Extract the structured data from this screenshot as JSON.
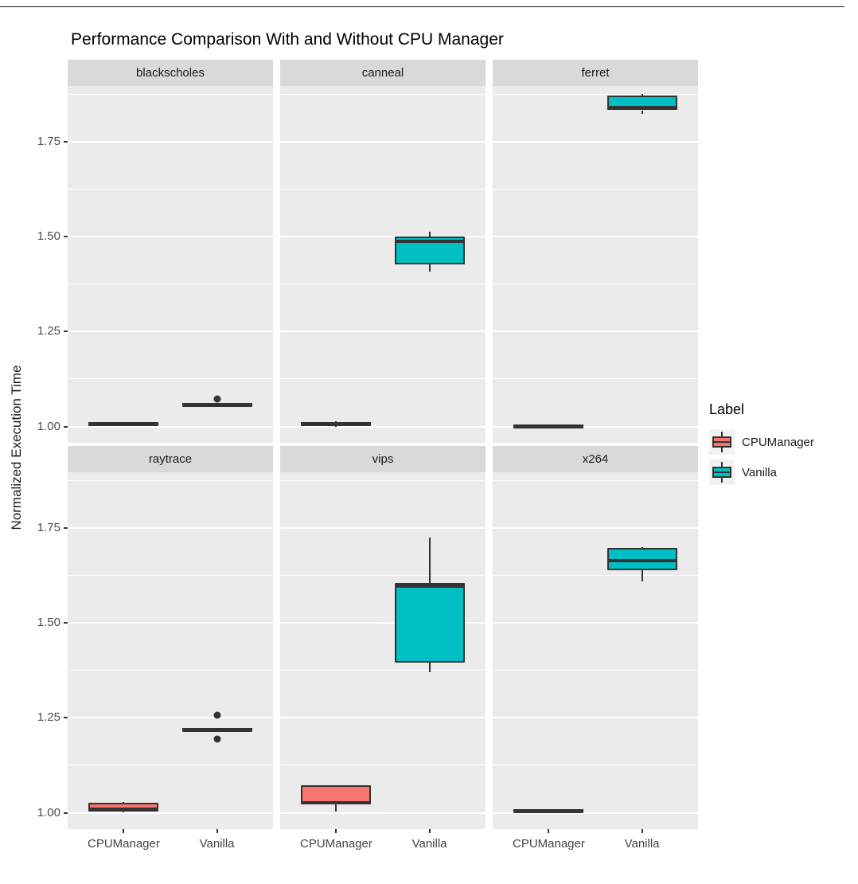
{
  "figure": {
    "title": "Performance Comparison With and Without CPU Manager",
    "ylabel": "Normalized Execution Time"
  },
  "legend": {
    "title": "Label",
    "entries": [
      {
        "label": "CPUManager",
        "color": "#F8766D"
      },
      {
        "label": "Vanilla",
        "color": "#00BFC4"
      }
    ]
  },
  "colors": {
    "box_outline": "#333333",
    "panel_background": "#EBEBEB",
    "strip_background": "#D9D9D9",
    "gridline": "#FFFFFF",
    "axis_text": "#4D4D4D",
    "title_text": "#000000",
    "legend_key_background": "#F2F2F2",
    "cpumanager_fill": "#F8766D",
    "vanilla_fill": "#00BFC4"
  },
  "chart_data": {
    "type": "boxplot",
    "title": "Performance Comparison With and Without CPU Manager",
    "ylabel": "Normalized Execution Time",
    "xlabel": "",
    "categories": [
      "CPUManager",
      "Vanilla"
    ],
    "yticks": [
      1.0,
      1.25,
      1.5,
      1.75
    ],
    "ylim": [
      0.957,
      1.897
    ],
    "grid": "major-and-minor-white-on-gray",
    "legend_position": "right",
    "legend_title": "Label",
    "facet_layout": {
      "rows": 2,
      "cols": 3
    },
    "facets": [
      {
        "name": "blackscholes",
        "boxes": [
          {
            "group": "CPUManager",
            "min": 1.003,
            "q1": 1.004,
            "median": 1.007,
            "q3": 1.01,
            "max": 1.011,
            "outliers": []
          },
          {
            "group": "Vanilla",
            "min": 1.053,
            "q1": 1.055,
            "median": 1.057,
            "q3": 1.059,
            "max": 1.061,
            "outliers": [
              1.072
            ]
          }
        ]
      },
      {
        "name": "canneal",
        "boxes": [
          {
            "group": "CPUManager",
            "min": 1.0,
            "q1": 1.001,
            "median": 1.007,
            "q3": 1.012,
            "max": 1.013,
            "outliers": []
          },
          {
            "group": "Vanilla",
            "min": 1.408,
            "q1": 1.428,
            "median": 1.487,
            "q3": 1.5,
            "max": 1.512,
            "outliers": []
          }
        ]
      },
      {
        "name": "ferret",
        "boxes": [
          {
            "group": "CPUManager",
            "min": 0.999,
            "q1": 1.0,
            "median": 1.002,
            "q3": 1.003,
            "max": 1.004,
            "outliers": []
          },
          {
            "group": "Vanilla",
            "min": 1.824,
            "q1": 1.833,
            "median": 1.84,
            "q3": 1.872,
            "max": 1.876,
            "outliers": []
          }
        ]
      },
      {
        "name": "raytrace",
        "boxes": [
          {
            "group": "CPUManager",
            "min": 1.001,
            "q1": 1.003,
            "median": 1.01,
            "q3": 1.027,
            "max": 1.028,
            "outliers": []
          },
          {
            "group": "Vanilla",
            "min": 1.217,
            "q1": 1.218,
            "median": 1.22,
            "q3": 1.222,
            "max": 1.223,
            "outliers": [
              1.256,
              1.194
            ]
          }
        ]
      },
      {
        "name": "vips",
        "boxes": [
          {
            "group": "CPUManager",
            "min": 1.004,
            "q1": 1.022,
            "median": 1.027,
            "q3": 1.072,
            "max": 1.073,
            "outliers": []
          },
          {
            "group": "Vanilla",
            "min": 1.371,
            "q1": 1.395,
            "median": 1.598,
            "q3": 1.605,
            "max": 1.724,
            "outliers": []
          }
        ]
      },
      {
        "name": "x264",
        "boxes": [
          {
            "group": "CPUManager",
            "min": 1.002,
            "q1": 1.003,
            "median": 1.006,
            "q3": 1.008,
            "max": 1.009,
            "outliers": []
          },
          {
            "group": "Vanilla",
            "min": 1.609,
            "q1": 1.639,
            "median": 1.665,
            "q3": 1.698,
            "max": 1.7,
            "outliers": []
          }
        ]
      }
    ]
  }
}
